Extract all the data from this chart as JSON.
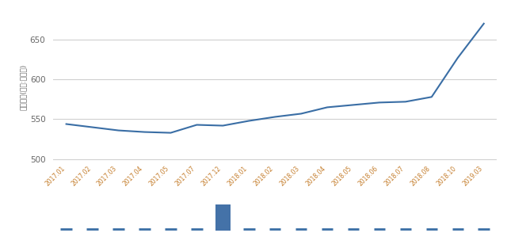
{
  "x_labels": [
    "2017.01",
    "2017.02",
    "2017.03",
    "2017.04",
    "2017.05",
    "2017.07",
    "2017.12",
    "2018.01",
    "2018.02",
    "2018.03",
    "2018.04",
    "2018.05",
    "2018.06",
    "2018.07",
    "2018.08",
    "2018.10",
    "2019.03"
  ],
  "x_positions": [
    0,
    1,
    2,
    3,
    4,
    5,
    6,
    7,
    8,
    9,
    10,
    11,
    12,
    13,
    14,
    15,
    16
  ],
  "line_values": [
    544,
    540,
    536,
    534,
    533,
    543,
    542,
    548,
    553,
    557,
    565,
    568,
    571,
    572,
    578,
    627,
    670
  ],
  "bar_values": [
    0,
    0,
    0,
    0,
    0,
    0,
    1,
    0,
    0,
    0,
    0,
    0,
    0,
    0,
    0,
    0,
    0
  ],
  "ylim": [
    495,
    685
  ],
  "yticks": [
    500,
    550,
    600,
    650
  ],
  "line_color": "#3a6ea5",
  "bar_color": "#4472a8",
  "ylabel": "거래금액(단위:백만원)",
  "bg_color": "#ffffff",
  "grid_color": "#d0d0d0",
  "tick_label_color": "#c47c2a",
  "legend_line_color": "#3a6ea5"
}
